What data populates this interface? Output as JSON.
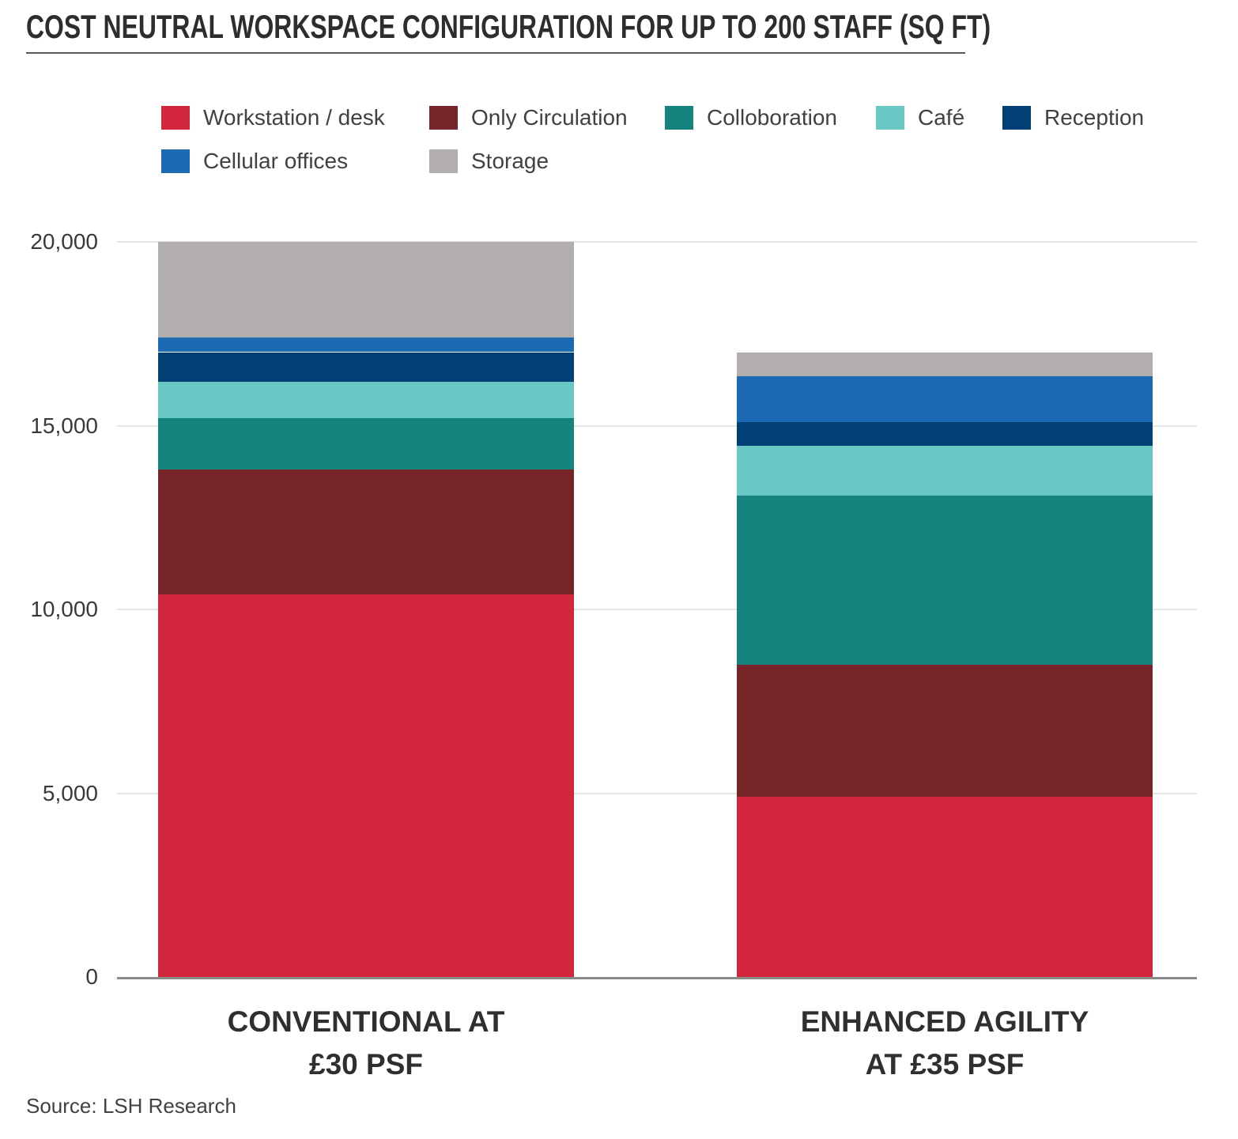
{
  "chart_data": {
    "type": "bar",
    "stacked": true,
    "title": "COST NEUTRAL WORKSPACE CONFIGURATION FOR UP TO 200 STAFF (SQ FT)",
    "categories": [
      "CONVENTIONAL AT\n£30 PSF",
      "ENHANCED AGILITY\nAT £35 PSF"
    ],
    "series": [
      {
        "name": "Workstation / desk",
        "color": "#d1263c",
        "values": [
          10400,
          4900
        ]
      },
      {
        "name": "Only Circulation",
        "color": "#772529",
        "values": [
          3400,
          3600
        ]
      },
      {
        "name": "Colloboration",
        "color": "#15837e",
        "values": [
          1400,
          4600
        ]
      },
      {
        "name": "Café",
        "color": "#69c8c4",
        "values": [
          1000,
          1350
        ]
      },
      {
        "name": "Reception",
        "color": "#004076",
        "values": [
          800,
          650
        ]
      },
      {
        "name": "Cellular offices",
        "color": "#1c6ab4",
        "values": [
          400,
          1250
        ]
      },
      {
        "name": "Storage",
        "color": "#b1aead",
        "values": [
          2600,
          650
        ]
      }
    ],
    "bar_totals": [
      20000,
      17000
    ],
    "ylim": [
      0,
      20000
    ],
    "yticks": [
      0,
      5000,
      10000,
      15000,
      20000
    ],
    "ytick_labels": [
      "0",
      "5,000",
      "10,000",
      "15,000",
      "20,000"
    ],
    "grid": true,
    "legend_position": "top",
    "source": "Source: LSH Research"
  },
  "colors": {
    "gridline": "#e4e5e6",
    "axis_line": "#8a8a8a",
    "title_text": "#2d2d2f",
    "label_text": "#39393b",
    "legend_text": "#414042",
    "title_rule": "#58585a"
  }
}
